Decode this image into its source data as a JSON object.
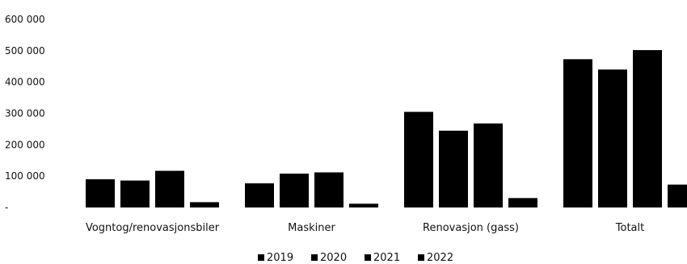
{
  "chart_data": {
    "type": "bar",
    "title": "",
    "xlabel": "",
    "ylabel": "",
    "categories": [
      "Vogntog/renovasjonsbiler",
      "Maskiner",
      "Renovasjon (gass)",
      "Totalt"
    ],
    "series": [
      {
        "name": "2019",
        "values": [
          90000,
          77000,
          305000,
          473000
        ]
      },
      {
        "name": "2020",
        "values": [
          86000,
          108000,
          245000,
          440000
        ]
      },
      {
        "name": "2021",
        "values": [
          117000,
          112000,
          268000,
          502000
        ]
      },
      {
        "name": "2022",
        "values": [
          17000,
          12000,
          30000,
          73000
        ]
      }
    ],
    "ylim": [
      0,
      600000
    ],
    "yticks": [
      0,
      100000,
      200000,
      300000,
      400000,
      500000,
      600000
    ],
    "ytick_labels": [
      "-",
      "100 000",
      "200 000",
      "300 000",
      "400 000",
      "500 000",
      "600 000"
    ],
    "grid": false,
    "legend_position": "bottom",
    "colors": [
      "#000000",
      "#000000",
      "#000000",
      "#000000"
    ]
  }
}
